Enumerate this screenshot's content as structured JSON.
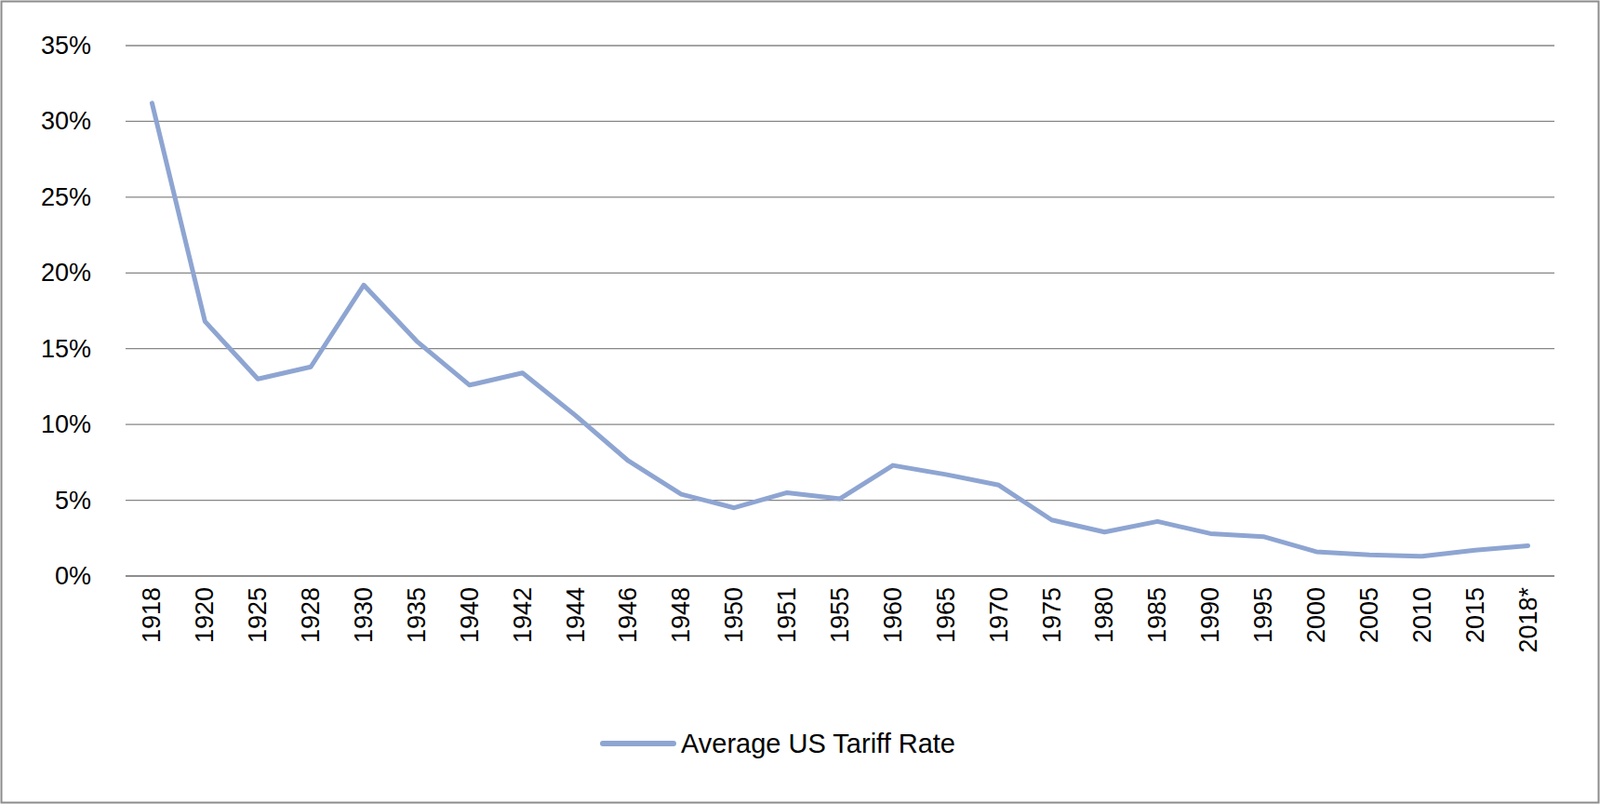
{
  "chart_data": {
    "type": "line",
    "categories": [
      "1918",
      "1920",
      "1925",
      "1928",
      "1930",
      "1935",
      "1940",
      "1942",
      "1944",
      "1946",
      "1948",
      "1950",
      "1951",
      "1955",
      "1960",
      "1965",
      "1970",
      "1975",
      "1980",
      "1985",
      "1990",
      "1995",
      "2000",
      "2005",
      "2010",
      "2015",
      "2018*"
    ],
    "series": [
      {
        "name": "Average US Tariff Rate",
        "color": "#8ea5d2",
        "values": [
          31.2,
          16.8,
          13.0,
          13.8,
          19.2,
          15.5,
          12.6,
          13.4,
          10.6,
          7.6,
          5.4,
          4.5,
          5.5,
          5.1,
          7.3,
          6.7,
          6.0,
          3.7,
          2.9,
          3.6,
          2.8,
          2.6,
          1.6,
          1.4,
          1.3,
          1.7,
          2.0
        ]
      }
    ],
    "ylim": [
      0,
      35
    ],
    "yticks": [
      {
        "value": 0,
        "label": "0%"
      },
      {
        "value": 5,
        "label": "5%"
      },
      {
        "value": 10,
        "label": "10%"
      },
      {
        "value": 15,
        "label": "15%"
      },
      {
        "value": 20,
        "label": "20%"
      },
      {
        "value": 25,
        "label": "25%"
      },
      {
        "value": 30,
        "label": "30%"
      },
      {
        "value": 35,
        "label": "35%"
      }
    ],
    "grid": true,
    "legend": "bottom"
  }
}
